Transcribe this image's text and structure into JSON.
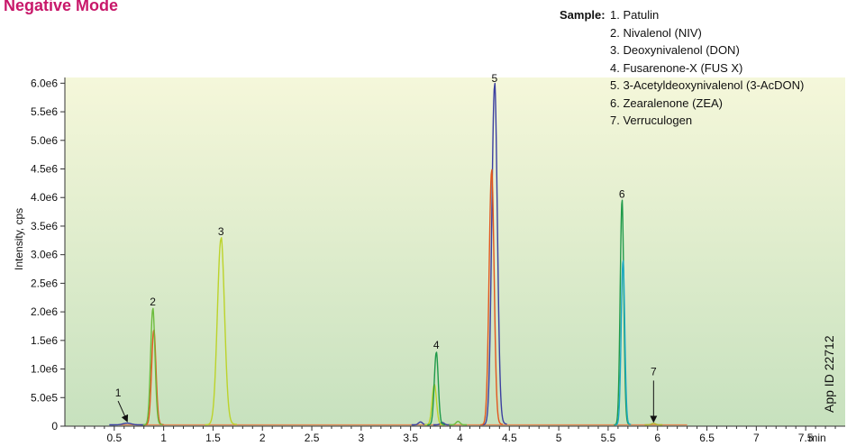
{
  "title": "Negative Mode",
  "legend": {
    "heading": "Sample:",
    "items": [
      "1. Patulin",
      "2. Nivalenol (NIV)",
      "3. Deoxynivalenol (DON)",
      "4. Fusarenone-X (FUS X)",
      "5. 3-Acetyldeoxynivalenol (3-AcDON)",
      "6. Zearalenone (ZEA)",
      "7. Verruculogen"
    ]
  },
  "app_id": "App ID 22712",
  "chart_data": {
    "type": "line",
    "xlabel": "min",
    "ylabel": "Intensity, cps",
    "xlim": [
      0.0,
      7.9
    ],
    "ylim": [
      0,
      6100000
    ],
    "x_ticks": [
      0.5,
      1,
      1.5,
      2,
      2.5,
      3,
      3.5,
      4,
      4.5,
      5,
      5.5,
      6,
      6.5,
      7,
      7.5
    ],
    "x_tick_labels": [
      "0.5",
      "1",
      "1.5",
      "2",
      "2.5",
      "3",
      "3.5",
      "4",
      "4.5",
      "5",
      "5.5",
      "6",
      "6.5",
      "7",
      "7.5"
    ],
    "y_ticks": [
      0,
      500000,
      1000000,
      1500000,
      2000000,
      2500000,
      3000000,
      3500000,
      4000000,
      4500000,
      5000000,
      5500000,
      6000000
    ],
    "y_tick_labels": [
      "0",
      "5.0e5",
      "1.0e6",
      "1.5e6",
      "2.0e6",
      "2.5e6",
      "3.0e6",
      "3.5e6",
      "4.0e6",
      "4.5e6",
      "5.0e6",
      "5.5e6",
      "6.0e6"
    ],
    "background_gradient": [
      "#c7e1be",
      "#f5f7da"
    ],
    "baseline_color": "#e28a55",
    "series": [
      {
        "color": "#3b3fa0",
        "peaks": [
          {
            "rt": 0.63,
            "height": 30000,
            "width": 0.04
          },
          {
            "rt": 3.6,
            "height": 50000,
            "width": 0.02
          },
          {
            "rt": 3.82,
            "height": 40000,
            "width": 0.02
          },
          {
            "rt": 4.35,
            "height": 5930000,
            "width": 0.028
          }
        ]
      },
      {
        "color": "#e2571e",
        "peaks": [
          {
            "rt": 0.9,
            "height": 1650000,
            "width": 0.022
          },
          {
            "rt": 4.32,
            "height": 4430000,
            "width": 0.025
          }
        ]
      },
      {
        "color": "#6cbc3c",
        "peaks": [
          {
            "rt": 0.89,
            "height": 2020000,
            "width": 0.022
          },
          {
            "rt": 3.98,
            "height": 60000,
            "width": 0.02
          }
        ]
      },
      {
        "color": "#bcd32a",
        "peaks": [
          {
            "rt": 1.58,
            "height": 3250000,
            "width": 0.036
          },
          {
            "rt": 3.74,
            "height": 700000,
            "width": 0.022
          }
        ]
      },
      {
        "color": "#1f9a4a",
        "peaks": [
          {
            "rt": 3.76,
            "height": 1260000,
            "width": 0.02
          },
          {
            "rt": 5.64,
            "height": 3900000,
            "width": 0.018
          }
        ]
      },
      {
        "color": "#1aa8c4",
        "peaks": [
          {
            "rt": 5.65,
            "height": 2850000,
            "width": 0.018
          }
        ]
      },
      {
        "color": "#b3b02a",
        "peaks": [
          {
            "rt": 5.96,
            "height": 25000,
            "width": 0.02
          }
        ]
      }
    ],
    "peak_labels": [
      {
        "text": "1",
        "x": 0.63,
        "y": 30000,
        "arrow": true
      },
      {
        "text": "2",
        "x": 0.89,
        "y": 2020000
      },
      {
        "text": "3",
        "x": 1.58,
        "y": 3250000
      },
      {
        "text": "4",
        "x": 3.76,
        "y": 1260000
      },
      {
        "text": "5",
        "x": 4.35,
        "y": 5930000
      },
      {
        "text": "6",
        "x": 5.64,
        "y": 3900000
      },
      {
        "text": "7",
        "x": 5.96,
        "y": 25000,
        "arrow": true
      }
    ]
  }
}
